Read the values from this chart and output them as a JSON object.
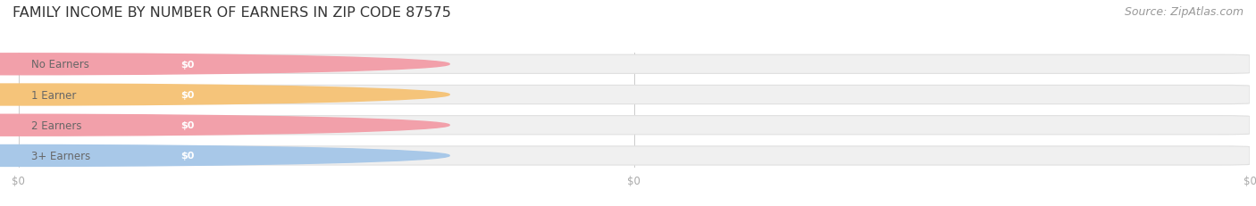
{
  "title": "FAMILY INCOME BY NUMBER OF EARNERS IN ZIP CODE 87575",
  "source": "Source: ZipAtlas.com",
  "categories": [
    "No Earners",
    "1 Earner",
    "2 Earners",
    "3+ Earners"
  ],
  "values": [
    0,
    0,
    0,
    0
  ],
  "bar_colors": [
    "#f2a0aa",
    "#f5c47a",
    "#f2a0aa",
    "#a8c8e8"
  ],
  "bar_background": "#f0f0f0",
  "bar_border": "#e0e0e0",
  "value_labels": [
    "$0",
    "$0",
    "$0",
    "$0"
  ],
  "title_fontsize": 11.5,
  "source_fontsize": 9,
  "background_color": "#ffffff",
  "tick_color": "#aaaaaa",
  "label_text_color": "#666666",
  "value_text_color": "#ffffff",
  "gridline_color": "#cccccc"
}
